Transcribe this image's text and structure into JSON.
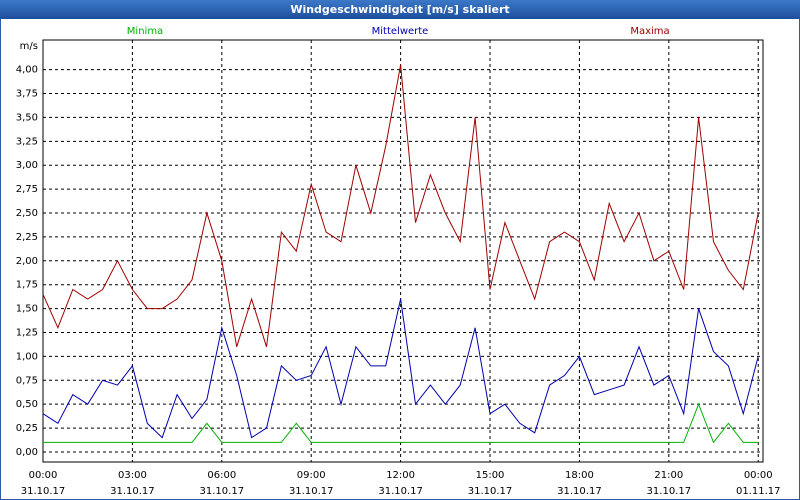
{
  "chart_data": {
    "type": "line",
    "title": "Windgeschwindigkeit [m/s] skaliert",
    "y_label": "m/s",
    "x": [
      0,
      0.5,
      1,
      1.5,
      2,
      2.5,
      3,
      3.5,
      4,
      4.5,
      5,
      5.5,
      6,
      6.5,
      7,
      7.5,
      8,
      8.5,
      9,
      9.5,
      10,
      10.5,
      11,
      11.5,
      12,
      12.5,
      13,
      13.5,
      14,
      14.5,
      15,
      15.5,
      16,
      16.5,
      17,
      17.5,
      18,
      18.5,
      19,
      19.5,
      20,
      20.5,
      21,
      21.5,
      22,
      22.5,
      23,
      23.5,
      24
    ],
    "series": [
      {
        "name": "Minima",
        "color": "#00b000",
        "values": [
          0.1,
          0.1,
          0.1,
          0.1,
          0.1,
          0.1,
          0.1,
          0.1,
          0.1,
          0.1,
          0.1,
          0.3,
          0.1,
          0.1,
          0.1,
          0.1,
          0.1,
          0.3,
          0.1,
          0.1,
          0.1,
          0.1,
          0.1,
          0.1,
          0.1,
          0.1,
          0.1,
          0.1,
          0.1,
          0.1,
          0.1,
          0.1,
          0.1,
          0.1,
          0.1,
          0.1,
          0.1,
          0.1,
          0.1,
          0.1,
          0.1,
          0.1,
          0.1,
          0.1,
          0.5,
          0.1,
          0.3,
          0.1,
          0.1
        ]
      },
      {
        "name": "Mittelwerte",
        "color": "#0000b0",
        "values": [
          0.4,
          0.3,
          0.6,
          0.5,
          0.75,
          0.7,
          0.9,
          0.3,
          0.15,
          0.6,
          0.35,
          0.55,
          1.3,
          0.8,
          0.15,
          0.25,
          0.9,
          0.75,
          0.8,
          1.1,
          0.5,
          1.1,
          0.9,
          0.9,
          1.6,
          0.5,
          0.7,
          0.5,
          0.7,
          1.3,
          0.4,
          0.5,
          0.3,
          0.2,
          0.7,
          0.8,
          1.0,
          0.6,
          0.65,
          0.7,
          1.1,
          0.7,
          0.8,
          0.4,
          1.5,
          1.05,
          0.9,
          0.4,
          1.0
        ]
      },
      {
        "name": "Maxima",
        "color": "#a00000",
        "values": [
          1.65,
          1.3,
          1.7,
          1.6,
          1.7,
          2.0,
          1.7,
          1.5,
          1.5,
          1.6,
          1.8,
          2.5,
          2.0,
          1.1,
          1.6,
          1.1,
          2.3,
          2.1,
          2.8,
          2.3,
          2.2,
          3.0,
          2.5,
          3.2,
          4.05,
          2.4,
          2.9,
          2.5,
          2.2,
          3.5,
          1.7,
          2.4,
          2.0,
          1.6,
          2.2,
          2.3,
          2.2,
          1.8,
          2.6,
          2.2,
          2.5,
          2.0,
          2.1,
          1.7,
          3.5,
          2.2,
          1.9,
          1.7,
          2.5
        ]
      }
    ],
    "xlim": [
      0,
      24.16
    ],
    "xticks": [
      {
        "value": 0,
        "label": "00:00",
        "date": "31.10.17"
      },
      {
        "value": 3,
        "label": "03:00",
        "date": "31.10.17"
      },
      {
        "value": 6,
        "label": "06:00",
        "date": "31.10.17"
      },
      {
        "value": 9,
        "label": "09:00",
        "date": "31.10.17"
      },
      {
        "value": 12,
        "label": "12:00",
        "date": "31.10.17"
      },
      {
        "value": 15,
        "label": "15:00",
        "date": "31.10.17"
      },
      {
        "value": 18,
        "label": "18:00",
        "date": "31.10.17"
      },
      {
        "value": 21,
        "label": "21:00",
        "date": "31.10.17"
      },
      {
        "value": 24,
        "label": "00:00",
        "date": "01.11.17"
      }
    ],
    "ylim": [
      -0.105,
      4.31
    ],
    "yticks": [
      {
        "value": 0,
        "label": "0,00"
      },
      {
        "value": 0.25,
        "label": "0,25"
      },
      {
        "value": 0.5,
        "label": "0,50"
      },
      {
        "value": 0.75,
        "label": "0,75"
      },
      {
        "value": 1,
        "label": "1,00"
      },
      {
        "value": 1.25,
        "label": "1,25"
      },
      {
        "value": 1.5,
        "label": "1,50"
      },
      {
        "value": 1.75,
        "label": "1,75"
      },
      {
        "value": 2,
        "label": "2,00"
      },
      {
        "value": 2.25,
        "label": "2,25"
      },
      {
        "value": 2.5,
        "label": "2,50"
      },
      {
        "value": 2.75,
        "label": "2,75"
      },
      {
        "value": 3,
        "label": "3,00"
      },
      {
        "value": 3.25,
        "label": "3,25"
      },
      {
        "value": 3.5,
        "label": "3,50"
      },
      {
        "value": 3.75,
        "label": "3,75"
      },
      {
        "value": 4,
        "label": "4,00"
      }
    ],
    "grid": true
  }
}
